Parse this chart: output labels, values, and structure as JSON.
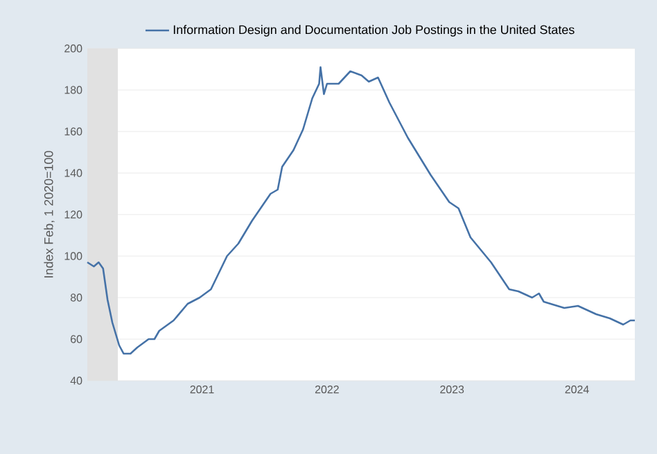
{
  "chart_data": {
    "type": "line",
    "ylabel": "Index Feb, 1 2020=100",
    "x": [
      "2020-02-01",
      "2020-02-20",
      "2020-03-05",
      "2020-03-18",
      "2020-03-31",
      "2020-04-14",
      "2020-05-04",
      "2020-05-17",
      "2020-06-06",
      "2020-06-26",
      "2020-07-29",
      "2020-08-15",
      "2020-08-29",
      "2020-10-10",
      "2020-11-20",
      "2020-12-25",
      "2021-01-27",
      "2021-03-15",
      "2021-04-17",
      "2021-05-27",
      "2021-07-20",
      "2021-08-10",
      "2021-08-23",
      "2021-09-25",
      "2021-10-23",
      "2021-11-19",
      "2021-12-09",
      "2021-12-13",
      "2021-12-23",
      "2022-01-01",
      "2022-02-04",
      "2022-03-10",
      "2022-04-12",
      "2022-05-03",
      "2022-05-30",
      "2022-07-02",
      "2022-08-25",
      "2022-10-31",
      "2022-12-24",
      "2023-01-20",
      "2023-02-24",
      "2023-04-25",
      "2023-06-17",
      "2023-07-14",
      "2023-08-23",
      "2023-09-12",
      "2023-09-26",
      "2023-11-25",
      "2024-01-04",
      "2024-02-26",
      "2024-04-06",
      "2024-05-15",
      "2024-06-05",
      "2024-06-18"
    ],
    "series": [
      {
        "name": "Information Design and Documentation Job Postings in the United States",
        "color": "#4572a7",
        "values": [
          97,
          95,
          97,
          94,
          79,
          68,
          57,
          53,
          53,
          56,
          60,
          60,
          64,
          69,
          77,
          80,
          84,
          100,
          106,
          117,
          130,
          132,
          143,
          151,
          161,
          176,
          183,
          191,
          178,
          183,
          183,
          189,
          187,
          184,
          186,
          174,
          157,
          139,
          126,
          123,
          109,
          97,
          84,
          83,
          80,
          82,
          78,
          75,
          76,
          72,
          70,
          67,
          69,
          69
        ]
      }
    ],
    "xlim": [
      "2020-02-01",
      "2024-06-18"
    ],
    "xticks": [
      {
        "value": "2021-01-01",
        "label": "2021"
      },
      {
        "value": "2022-01-01",
        "label": "2022"
      },
      {
        "value": "2023-01-01",
        "label": "2023"
      },
      {
        "value": "2024-01-01",
        "label": "2024"
      }
    ],
    "ylim": [
      40,
      200
    ],
    "yticks": [
      40,
      60,
      80,
      100,
      120,
      140,
      160,
      180,
      200
    ],
    "bands": [
      {
        "axis": "x",
        "from": "2020-02-01",
        "to": "2020-04-30",
        "color": "#e1e1e1"
      }
    ],
    "grid": "y",
    "legend": "top",
    "marker": "none",
    "line_style": "solid"
  }
}
